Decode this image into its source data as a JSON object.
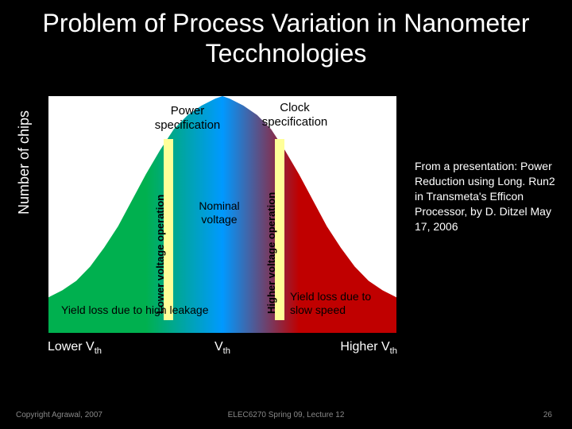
{
  "title": "Problem of Process Variation in Nanometer Tecchnologies",
  "y_axis_label": "Number of chips",
  "chart": {
    "type": "infographic",
    "background_color": "#ffffff",
    "gradient_colors": [
      "#00b04f",
      "#0099ff",
      "#c00000"
    ],
    "vline_color": "#ffff99",
    "spec_power": "Power specification",
    "spec_clock": "Clock specification",
    "vline_left_label": "Lower voltage operation",
    "vline_right_label": "Higher voltage operation",
    "nominal": "Nominal voltage",
    "yield_left": "Yield loss due to high leakage",
    "yield_right": "Yield loss due to slow speed"
  },
  "x_ticks": {
    "left": "Lower V",
    "left_sub": "th",
    "mid": "V",
    "mid_sub": "th",
    "right": "Higher V",
    "right_sub": "th"
  },
  "source": "From a presentation: Power Reduction using Long. Run2 in Transmeta's Efficon Processor, by D. Ditzel May 17, 2006",
  "copyright": "Copyright Agrawal, 2007",
  "lecture": "ELEC6270 Spring 09, Lecture 12",
  "pagenum": "26",
  "colors": {
    "slide_bg": "#000000",
    "title_text": "#ffffff",
    "body_text": "#ffffff",
    "footer_text": "#888888"
  },
  "fonts": {
    "title_size": 32,
    "axis_size": 18,
    "body_size": 14
  }
}
